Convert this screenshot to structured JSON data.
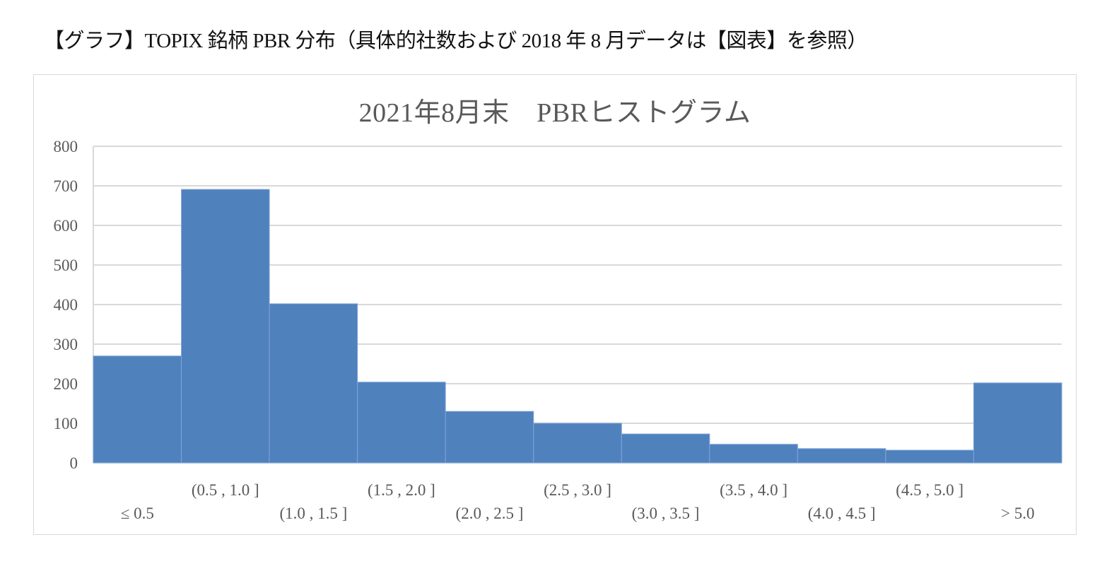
{
  "caption": "【グラフ】TOPIX 銘柄 PBR 分布（具体的社数および 2018 年 8 月データは【図表】を参照）",
  "chart_data": {
    "type": "bar",
    "title": "2021年8月末　PBRヒストグラム",
    "xlabel": "",
    "ylabel": "",
    "ylim": [
      0,
      800
    ],
    "yticks": [
      0,
      100,
      200,
      300,
      400,
      500,
      600,
      700,
      800
    ],
    "grid": true,
    "legend": null,
    "bar_color": "#4F81BD",
    "categories": [
      "≤ 0.5",
      "(0.5 , 1.0 ]",
      "(1.0 , 1.5 ]",
      "(1.5 , 2.0 ]",
      "(2.0 , 2.5 ]",
      "(2.5 , 3.0 ]",
      "(3.0 , 3.5 ]",
      "(3.5 , 4.0 ]",
      "(4.0 , 4.5 ]",
      "(4.5 , 5.0 ]",
      "> 5.0"
    ],
    "values": [
      270,
      691,
      402,
      204,
      130,
      100,
      73,
      47,
      36,
      32,
      202
    ]
  }
}
